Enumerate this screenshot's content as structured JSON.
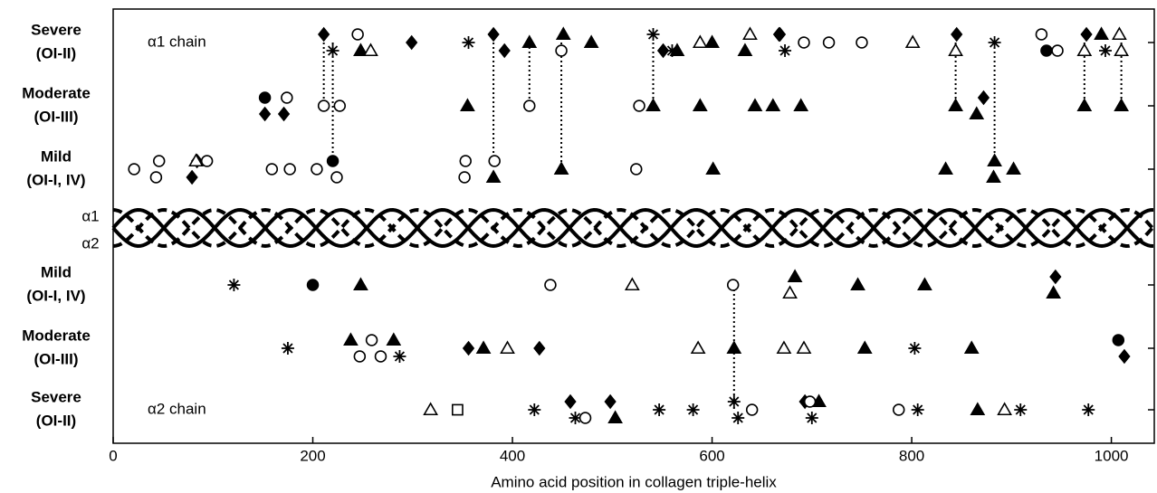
{
  "chart_data": {
    "type": "mutation-map",
    "xlabel": "Amino acid position in collagen triple-helix",
    "xlim": [
      0,
      1043
    ],
    "xticks": [
      0,
      200,
      400,
      600,
      800,
      1000
    ],
    "chains": [
      {
        "label": "α1 chain",
        "helix_label": "α1",
        "links": [
          211,
          220,
          381,
          417,
          449,
          541,
          844,
          883,
          973,
          1010
        ],
        "rows": [
          {
            "name": "Severe",
            "sublabel": "(OI-II)",
            "points": [
              {
                "x": 211,
                "marker": "diamond"
              },
              {
                "x": 220,
                "marker": "asterisk"
              },
              {
                "x": 245,
                "marker": "open-circle"
              },
              {
                "x": 248,
                "marker": "triangle"
              },
              {
                "x": 258,
                "marker": "open-triangle"
              },
              {
                "x": 299,
                "marker": "diamond"
              },
              {
                "x": 356,
                "marker": "asterisk"
              },
              {
                "x": 381,
                "marker": "diamond"
              },
              {
                "x": 392,
                "marker": "diamond"
              },
              {
                "x": 417,
                "marker": "triangle"
              },
              {
                "x": 451,
                "marker": "triangle"
              },
              {
                "x": 449,
                "marker": "open-circle"
              },
              {
                "x": 479,
                "marker": "triangle"
              },
              {
                "x": 541,
                "marker": "asterisk"
              },
              {
                "x": 551,
                "marker": "diamond"
              },
              {
                "x": 560,
                "marker": "asterisk"
              },
              {
                "x": 565,
                "marker": "triangle"
              },
              {
                "x": 588,
                "marker": "open-triangle"
              },
              {
                "x": 600,
                "marker": "triangle"
              },
              {
                "x": 638,
                "marker": "open-triangle"
              },
              {
                "x": 633,
                "marker": "triangle"
              },
              {
                "x": 667,
                "marker": "diamond"
              },
              {
                "x": 673,
                "marker": "asterisk"
              },
              {
                "x": 668,
                "marker": "diamond"
              },
              {
                "x": 692,
                "marker": "open-circle"
              },
              {
                "x": 717,
                "marker": "open-circle"
              },
              {
                "x": 750,
                "marker": "open-circle"
              },
              {
                "x": 801,
                "marker": "open-triangle"
              },
              {
                "x": 845,
                "marker": "diamond"
              },
              {
                "x": 844,
                "marker": "open-triangle"
              },
              {
                "x": 883,
                "marker": "asterisk"
              },
              {
                "x": 930,
                "marker": "open-circle"
              },
              {
                "x": 935,
                "marker": "circle"
              },
              {
                "x": 946,
                "marker": "open-circle"
              },
              {
                "x": 975,
                "marker": "diamond"
              },
              {
                "x": 973,
                "marker": "open-triangle"
              },
              {
                "x": 990,
                "marker": "triangle"
              },
              {
                "x": 994,
                "marker": "asterisk"
              },
              {
                "x": 1008,
                "marker": "open-triangle"
              },
              {
                "x": 1010,
                "marker": "open-triangle"
              }
            ]
          },
          {
            "name": "Moderate",
            "sublabel": "(OI-III)",
            "points": [
              {
                "x": 152,
                "marker": "circle"
              },
              {
                "x": 152,
                "marker": "diamond"
              },
              {
                "x": 174,
                "marker": "open-circle"
              },
              {
                "x": 171,
                "marker": "diamond"
              },
              {
                "x": 211,
                "marker": "open-circle"
              },
              {
                "x": 227,
                "marker": "open-circle"
              },
              {
                "x": 355,
                "marker": "triangle"
              },
              {
                "x": 417,
                "marker": "open-circle"
              },
              {
                "x": 527,
                "marker": "open-circle"
              },
              {
                "x": 541,
                "marker": "triangle"
              },
              {
                "x": 588,
                "marker": "triangle"
              },
              {
                "x": 643,
                "marker": "triangle"
              },
              {
                "x": 661,
                "marker": "triangle"
              },
              {
                "x": 689,
                "marker": "triangle"
              },
              {
                "x": 844,
                "marker": "triangle"
              },
              {
                "x": 872,
                "marker": "diamond"
              },
              {
                "x": 865,
                "marker": "triangle"
              },
              {
                "x": 973,
                "marker": "triangle"
              },
              {
                "x": 1010,
                "marker": "triangle"
              }
            ]
          },
          {
            "name": "Mild",
            "sublabel": "(OI-I, IV)",
            "points": [
              {
                "x": 21,
                "marker": "open-circle"
              },
              {
                "x": 46,
                "marker": "open-circle"
              },
              {
                "x": 43,
                "marker": "open-circle"
              },
              {
                "x": 84,
                "marker": "diamond"
              },
              {
                "x": 79,
                "marker": "diamond"
              },
              {
                "x": 83,
                "marker": "open-triangle"
              },
              {
                "x": 94,
                "marker": "open-circle"
              },
              {
                "x": 159,
                "marker": "open-circle"
              },
              {
                "x": 177,
                "marker": "open-circle"
              },
              {
                "x": 204,
                "marker": "open-circle"
              },
              {
                "x": 220,
                "marker": "circle"
              },
              {
                "x": 224,
                "marker": "open-circle"
              },
              {
                "x": 353,
                "marker": "open-circle"
              },
              {
                "x": 352,
                "marker": "open-circle"
              },
              {
                "x": 382,
                "marker": "open-circle"
              },
              {
                "x": 381,
                "marker": "triangle"
              },
              {
                "x": 449,
                "marker": "triangle"
              },
              {
                "x": 524,
                "marker": "open-circle"
              },
              {
                "x": 601,
                "marker": "triangle"
              },
              {
                "x": 834,
                "marker": "triangle"
              },
              {
                "x": 883,
                "marker": "triangle"
              },
              {
                "x": 882,
                "marker": "triangle"
              },
              {
                "x": 902,
                "marker": "triangle"
              }
            ]
          }
        ]
      },
      {
        "label": "α2 chain",
        "helix_label": "α2",
        "links": [
          622
        ],
        "rows": [
          {
            "name": "Mild",
            "sublabel": "(OI-I, IV)",
            "points": [
              {
                "x": 121,
                "marker": "asterisk"
              },
              {
                "x": 200,
                "marker": "circle"
              },
              {
                "x": 248,
                "marker": "triangle"
              },
              {
                "x": 438,
                "marker": "open-circle"
              },
              {
                "x": 520,
                "marker": "open-triangle"
              },
              {
                "x": 621,
                "marker": "open-circle"
              },
              {
                "x": 683,
                "marker": "triangle"
              },
              {
                "x": 678,
                "marker": "open-triangle"
              },
              {
                "x": 746,
                "marker": "triangle"
              },
              {
                "x": 813,
                "marker": "triangle"
              },
              {
                "x": 944,
                "marker": "diamond"
              },
              {
                "x": 942,
                "marker": "triangle"
              }
            ]
          },
          {
            "name": "Moderate",
            "sublabel": "(OI-III)",
            "points": [
              {
                "x": 175,
                "marker": "asterisk"
              },
              {
                "x": 238,
                "marker": "triangle"
              },
              {
                "x": 247,
                "marker": "open-circle"
              },
              {
                "x": 259,
                "marker": "open-circle"
              },
              {
                "x": 268,
                "marker": "open-circle"
              },
              {
                "x": 281,
                "marker": "triangle"
              },
              {
                "x": 287,
                "marker": "asterisk"
              },
              {
                "x": 356,
                "marker": "diamond"
              },
              {
                "x": 371,
                "marker": "triangle"
              },
              {
                "x": 395,
                "marker": "open-triangle"
              },
              {
                "x": 427,
                "marker": "diamond"
              },
              {
                "x": 586,
                "marker": "open-triangle"
              },
              {
                "x": 622,
                "marker": "triangle"
              },
              {
                "x": 672,
                "marker": "open-triangle"
              },
              {
                "x": 692,
                "marker": "open-triangle"
              },
              {
                "x": 753,
                "marker": "triangle"
              },
              {
                "x": 803,
                "marker": "asterisk"
              },
              {
                "x": 860,
                "marker": "triangle"
              },
              {
                "x": 1007,
                "marker": "circle"
              },
              {
                "x": 1013,
                "marker": "diamond"
              }
            ]
          },
          {
            "name": "Severe",
            "sublabel": "(OI-II)",
            "points": [
              {
                "x": 318,
                "marker": "open-triangle"
              },
              {
                "x": 345,
                "marker": "open-square"
              },
              {
                "x": 422,
                "marker": "asterisk"
              },
              {
                "x": 458,
                "marker": "diamond"
              },
              {
                "x": 463,
                "marker": "asterisk"
              },
              {
                "x": 473,
                "marker": "open-circle"
              },
              {
                "x": 498,
                "marker": "diamond"
              },
              {
                "x": 503,
                "marker": "triangle"
              },
              {
                "x": 547,
                "marker": "asterisk"
              },
              {
                "x": 581,
                "marker": "asterisk"
              },
              {
                "x": 622,
                "marker": "asterisk"
              },
              {
                "x": 626,
                "marker": "asterisk"
              },
              {
                "x": 640,
                "marker": "open-circle"
              },
              {
                "x": 693,
                "marker": "diamond"
              },
              {
                "x": 707,
                "marker": "triangle"
              },
              {
                "x": 698,
                "marker": "open-circle"
              },
              {
                "x": 700,
                "marker": "asterisk"
              },
              {
                "x": 787,
                "marker": "open-circle"
              },
              {
                "x": 806,
                "marker": "asterisk"
              },
              {
                "x": 866,
                "marker": "triangle"
              },
              {
                "x": 893,
                "marker": "open-triangle"
              },
              {
                "x": 909,
                "marker": "asterisk"
              },
              {
                "x": 977,
                "marker": "asterisk"
              }
            ]
          }
        ]
      }
    ]
  }
}
